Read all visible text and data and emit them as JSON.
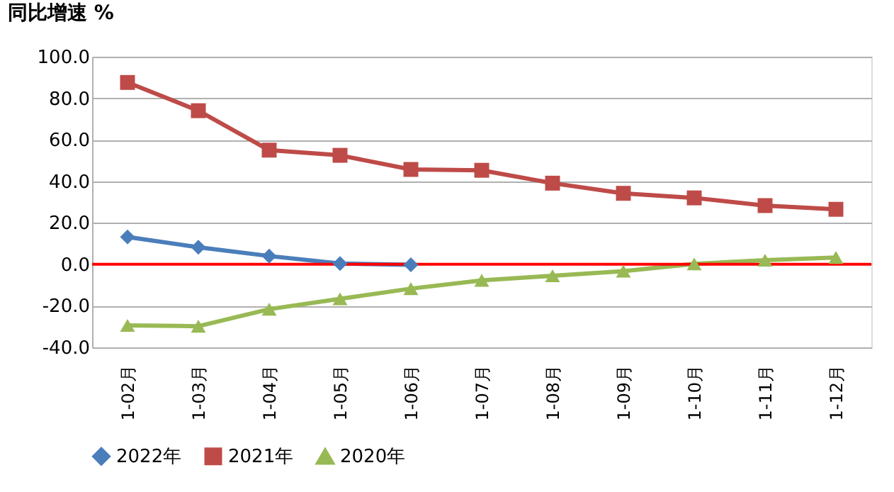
{
  "chart_data": {
    "type": "line",
    "ylabel": "同比增速 %",
    "categories": [
      "1-02月",
      "1-03月",
      "1-04月",
      "1-05月",
      "1-06月",
      "1-07月",
      "1-08月",
      "1-09月",
      "1-10月",
      "1-11月",
      "1-12月"
    ],
    "series": [
      {
        "name": "2022年",
        "color": "#4a7ebb",
        "marker": "diamond",
        "values": [
          13.2,
          8.2,
          4.0,
          0.4,
          -0.2,
          null,
          null,
          null,
          null,
          null,
          null
        ]
      },
      {
        "name": "2021年",
        "color": "#be4b48",
        "marker": "square",
        "values": [
          87.6,
          74.0,
          55.0,
          52.5,
          45.7,
          45.3,
          39.1,
          34.2,
          32.0,
          28.3,
          26.5
        ]
      },
      {
        "name": "2020年",
        "color": "#98b954",
        "marker": "triangle",
        "values": [
          -29.4,
          -29.8,
          -21.6,
          -16.6,
          -11.7,
          -7.7,
          -5.5,
          -3.3,
          0.2,
          2.0,
          3.3
        ]
      }
    ],
    "ylim": [
      -40,
      100
    ],
    "yticks": [
      {
        "value": -40,
        "label": "-40.0"
      },
      {
        "value": -20,
        "label": "-20.0"
      },
      {
        "value": 0,
        "label": "0.0"
      },
      {
        "value": 20,
        "label": "20.0"
      },
      {
        "value": 40,
        "label": "40.0"
      },
      {
        "value": 60,
        "label": "60.0"
      },
      {
        "value": 80,
        "label": "80.0"
      },
      {
        "value": 100,
        "label": "100.0"
      }
    ],
    "grid": "y",
    "legend": "bottom",
    "line_style": "solid",
    "ref_lines": [
      {
        "axis": "y",
        "value": 0,
        "color": "#ff0000",
        "line_style": "solid"
      }
    ]
  }
}
